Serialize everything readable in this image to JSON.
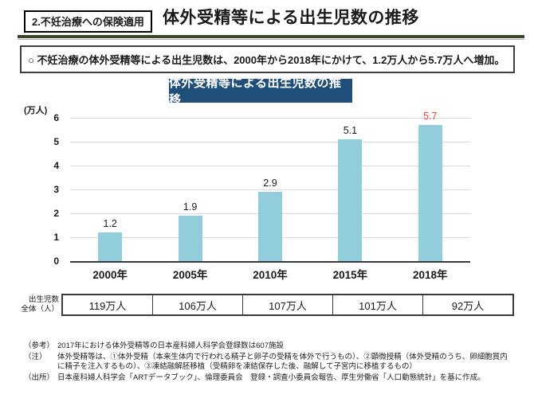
{
  "page": {
    "badge": "2.不妊治療への保険適用",
    "title": "体外受精等による出生児数の推移"
  },
  "summary": {
    "text": "○ 不妊治療の体外受精等による出生児数は、2000年から2018年にかけて、1.2万人から5.7万人へ増加。"
  },
  "chart_data": {
    "type": "bar",
    "title": "体外受精等による出生児数の推移",
    "y_unit_label": "(万人)",
    "categories": [
      "2000年",
      "2005年",
      "2010年",
      "2015年",
      "2018年"
    ],
    "values": [
      1.2,
      1.9,
      2.9,
      5.1,
      5.7
    ],
    "value_labels": [
      "1.2",
      "1.9",
      "2.9",
      "5.1",
      "5.7"
    ],
    "ylim": [
      0,
      6
    ],
    "ytick_step": 1,
    "grid": true,
    "legend": "none",
    "bar_color": "#92cddc",
    "value_label_color": "#1a1a1a",
    "highlight_index": 4,
    "highlight_color": "#ee4141"
  },
  "table": {
    "row_label_line1": "出生児数",
    "row_label_line2": "全体（人）",
    "cells": [
      "119万人",
      "106万人",
      "107万人",
      "101万人",
      "92万人"
    ]
  },
  "footnotes": [
    {
      "prefix": "（参考）",
      "text": "2017年における体外受精等の日本産科婦人科学会登録数は607施設"
    },
    {
      "prefix": "（注）",
      "text": "体外受精等は、①体外受精（本来生体内で行われる精子と卵子の受精を体外で行うもの）、②顕微授精（体外受精のうち、卵細胞質内に精子を注入するもの）、③凍結融解胚移植（受精卵を凍結保存した後、融解して子宮内に移植するもの）"
    },
    {
      "prefix": "（出所）",
      "text": "日本産科婦人科学会「ARTデータブック」、倫理委員会　登録・調査小委員会報告、厚生労働省「人口動態統計」を基に作成。"
    }
  ],
  "colors": {
    "chart_title_bg": "#1f4e79",
    "header_rule": "#3a452b",
    "axis": "#3a3a3a",
    "gridline": "#d9d9d9"
  }
}
